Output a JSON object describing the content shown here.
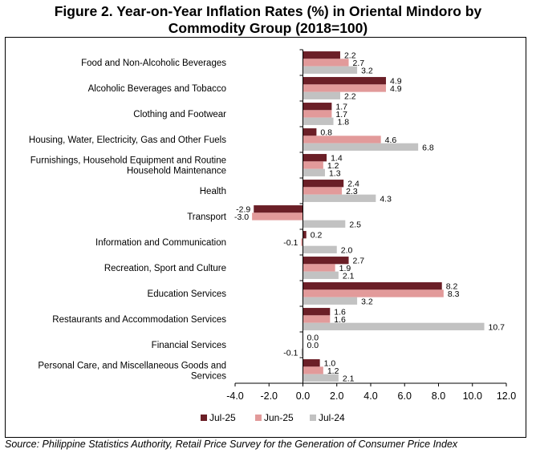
{
  "title_line1": "Figure 2. Year-on-Year Inflation Rates (%) in Oriental Mindoro by",
  "title_line2": "Commodity Group (2018=100)",
  "source": "Source: Philippine Statistics Authority, Retail Price Survey for the Generation of Consumer Price Index",
  "colors": {
    "jul25": "#6b1f27",
    "jun25": "#e29a9a",
    "jul24": "#c2c2c2",
    "axis": "#000000"
  },
  "chart_data": {
    "type": "bar",
    "orientation": "horizontal",
    "title": "Figure 2. Year-on-Year Inflation Rates (%) in Oriental Mindoro by Commodity Group (2018=100)",
    "categories": [
      [
        "Food and Non-Alcoholic Beverages"
      ],
      [
        "Alcoholic Beverages and Tobacco"
      ],
      [
        "Clothing and Footwear"
      ],
      [
        "Housing, Water, Electricity, Gas and Other Fuels"
      ],
      [
        "Furnishings, Household Equipment and Routine",
        "Household Maintenance"
      ],
      [
        "Health"
      ],
      [
        "Transport"
      ],
      [
        "Information and Communication"
      ],
      [
        "Recreation, Sport and Culture"
      ],
      [
        "Education Services"
      ],
      [
        "Restaurants and Accommodation Services"
      ],
      [
        "Financial Services"
      ],
      [
        "Personal Care, and Miscellaneous Goods and",
        "Services"
      ]
    ],
    "series": [
      {
        "name": "Jul-25",
        "values": [
          2.2,
          4.9,
          1.7,
          0.8,
          1.4,
          2.4,
          -2.9,
          0.2,
          2.7,
          8.2,
          1.6,
          0.0,
          1.0
        ],
        "labels": [
          "2.2",
          "4.9",
          "1.7",
          "0.8",
          "1.4",
          "2.4",
          "-2.9",
          "0.2",
          "2.7",
          "8.2",
          "1.6",
          "0.0",
          "1.0"
        ]
      },
      {
        "name": "Jun-25",
        "values": [
          2.7,
          4.9,
          1.7,
          4.6,
          1.2,
          2.3,
          -3.0,
          -0.1,
          1.9,
          8.3,
          1.6,
          0.0,
          1.2
        ],
        "labels": [
          "2.7",
          "4.9",
          "1.7",
          "4.6",
          "1.2",
          "2.3",
          "-3.0",
          "-0.1",
          "1.9",
          "8.3",
          "1.6",
          "0.0",
          "1.2"
        ]
      },
      {
        "name": "Jul-24",
        "values": [
          3.2,
          2.2,
          1.8,
          6.8,
          1.3,
          4.3,
          2.5,
          2.0,
          2.1,
          3.2,
          10.7,
          -0.1,
          2.1
        ],
        "labels": [
          "3.2",
          "2.2",
          "1.8",
          "6.8",
          "1.3",
          "4.3",
          "2.5",
          "2.0",
          "2.1",
          "3.2",
          "10.7",
          "-0.1",
          "2.1"
        ]
      }
    ],
    "xlim": [
      -4.0,
      12.0
    ],
    "xticks": [
      "-4.0",
      "-2.0",
      "0.0",
      "2.0",
      "4.0",
      "6.0",
      "8.0",
      "10.0",
      "12.0"
    ],
    "grid": false,
    "legend_position": "bottom"
  }
}
